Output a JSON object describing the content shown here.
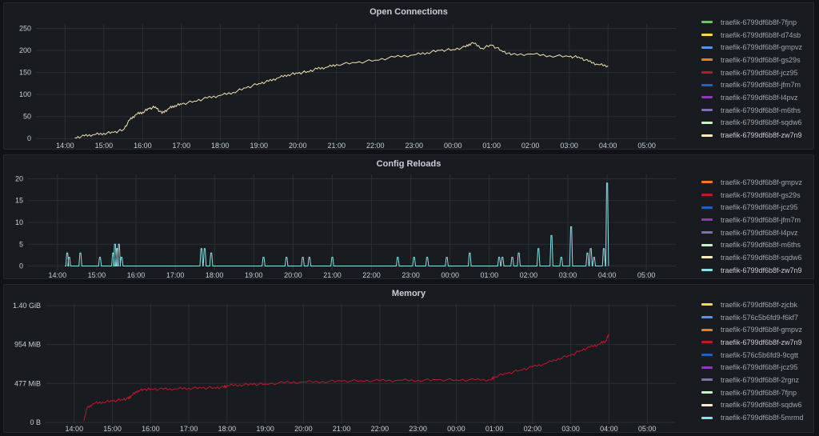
{
  "chart_data": [
    {
      "type": "line",
      "title": "Open Connections",
      "xlabel": "",
      "ylabel": "",
      "x_ticks": [
        "14:00",
        "15:00",
        "16:00",
        "17:00",
        "18:00",
        "19:00",
        "20:00",
        "21:00",
        "22:00",
        "23:00",
        "00:00",
        "01:00",
        "02:00",
        "03:00",
        "04:00",
        "05:00"
      ],
      "xlim": [
        "13:15",
        "05:45"
      ],
      "y_ticks": [
        "0",
        "50",
        "100",
        "150",
        "200",
        "250"
      ],
      "y_tick_values": [
        0,
        50,
        100,
        150,
        200,
        250
      ],
      "ylim": [
        -5,
        260
      ],
      "grid": true,
      "legend_placement": "right",
      "legend_scrolled": true,
      "legend": [
        {
          "name": "traefik-6799df6b8f-7fjnp",
          "color": "#73bf69",
          "partial": true
        },
        {
          "name": "traefik-6799df6b8f-d74sb",
          "color": "#fade2a"
        },
        {
          "name": "traefik-6799df6b8f-gmpvz",
          "color": "#5794f2"
        },
        {
          "name": "traefik-6799df6b8f-gs29s",
          "color": "#ff780a"
        },
        {
          "name": "traefik-6799df6b8f-jcz95",
          "color": "#c4162a"
        },
        {
          "name": "traefik-6799df6b8f-jfm7m",
          "color": "#1f60c4"
        },
        {
          "name": "traefik-6799df6b8f-l4pvz",
          "color": "#8f3bb8"
        },
        {
          "name": "traefik-6799df6b8f-m6ths",
          "color": "#806eb7"
        },
        {
          "name": "traefik-6799df6b8f-sqdw6",
          "color": "#c8f2c2"
        },
        {
          "name": "traefik-6799df6b8f-zw7n9",
          "color": "#ffeebc",
          "active": true
        }
      ],
      "series": [
        {
          "name": "traefik-6799df6b8f-zw7n9",
          "color": "#f2e3b3",
          "x": [
            "14:15",
            "14:30",
            "14:45",
            "15:00",
            "15:15",
            "15:30",
            "15:40",
            "15:50",
            "16:00",
            "16:10",
            "16:20",
            "16:30",
            "16:40",
            "16:50",
            "17:00",
            "17:20",
            "17:40",
            "18:00",
            "18:20",
            "18:40",
            "19:00",
            "19:15",
            "19:30",
            "19:45",
            "20:00",
            "20:15",
            "20:30",
            "20:45",
            "21:00",
            "21:30",
            "22:00",
            "22:30",
            "23:00",
            "23:20",
            "23:40",
            "00:00",
            "00:20",
            "00:30",
            "00:45",
            "01:00",
            "01:15",
            "01:30",
            "02:00",
            "02:30",
            "03:00",
            "03:15",
            "03:30",
            "03:45",
            "04:00"
          ],
          "y": [
            2,
            6,
            9,
            12,
            14,
            20,
            42,
            55,
            60,
            68,
            72,
            57,
            68,
            75,
            78,
            85,
            92,
            98,
            105,
            115,
            125,
            130,
            138,
            145,
            148,
            152,
            158,
            162,
            168,
            172,
            178,
            185,
            190,
            195,
            200,
            202,
            208,
            218,
            205,
            212,
            200,
            190,
            192,
            188,
            186,
            185,
            175,
            168,
            165
          ]
        }
      ]
    },
    {
      "type": "line",
      "title": "Config Reloads",
      "xlabel": "",
      "ylabel": "",
      "x_ticks": [
        "14:00",
        "15:00",
        "16:00",
        "17:00",
        "18:00",
        "19:00",
        "20:00",
        "21:00",
        "22:00",
        "23:00",
        "00:00",
        "01:00",
        "02:00",
        "03:00",
        "04:00",
        "05:00"
      ],
      "xlim": [
        "13:15",
        "05:45"
      ],
      "y_ticks": [
        "0",
        "5",
        "10",
        "15",
        "20"
      ],
      "y_tick_values": [
        0,
        5,
        10,
        15,
        20
      ],
      "ylim": [
        -1,
        21
      ],
      "grid": true,
      "legend_placement": "right",
      "legend": [
        {
          "name": "traefik-6799df6b8f-gmpvz",
          "color": "#ff780a"
        },
        {
          "name": "traefik-6799df6b8f-gs29s",
          "color": "#c4162a"
        },
        {
          "name": "traefik-6799df6b8f-jcz95",
          "color": "#1f60c4"
        },
        {
          "name": "traefik-6799df6b8f-jfm7m",
          "color": "#8f3bb8"
        },
        {
          "name": "traefik-6799df6b8f-l4pvz",
          "color": "#806eb7"
        },
        {
          "name": "traefik-6799df6b8f-m6ths",
          "color": "#c8f2c2"
        },
        {
          "name": "traefik-6799df6b8f-sqdw6",
          "color": "#ffeebc"
        },
        {
          "name": "traefik-6799df6b8f-zw7n9",
          "color": "#8ae1e8",
          "active": true
        }
      ],
      "series": [
        {
          "name": "traefik-6799df6b8f-zw7n9",
          "color": "#8ae1e8",
          "baseline": 0,
          "spikes": [
            {
              "t": "14:15",
              "y": 3
            },
            {
              "t": "14:18",
              "y": 2
            },
            {
              "t": "14:35",
              "y": 3
            },
            {
              "t": "15:05",
              "y": 2
            },
            {
              "t": "15:25",
              "y": 3
            },
            {
              "t": "15:28",
              "y": 5
            },
            {
              "t": "15:31",
              "y": 4
            },
            {
              "t": "15:34",
              "y": 5
            },
            {
              "t": "15:38",
              "y": 2
            },
            {
              "t": "17:40",
              "y": 4
            },
            {
              "t": "17:45",
              "y": 4
            },
            {
              "t": "17:55",
              "y": 3
            },
            {
              "t": "19:15",
              "y": 2
            },
            {
              "t": "19:50",
              "y": 2
            },
            {
              "t": "20:15",
              "y": 2
            },
            {
              "t": "20:25",
              "y": 2
            },
            {
              "t": "21:00",
              "y": 2
            },
            {
              "t": "22:40",
              "y": 2
            },
            {
              "t": "23:05",
              "y": 2
            },
            {
              "t": "23:25",
              "y": 2
            },
            {
              "t": "23:55",
              "y": 2
            },
            {
              "t": "00:30",
              "y": 3
            },
            {
              "t": "01:15",
              "y": 2
            },
            {
              "t": "01:20",
              "y": 2
            },
            {
              "t": "01:35",
              "y": 2
            },
            {
              "t": "01:45",
              "y": 3
            },
            {
              "t": "02:15",
              "y": 4
            },
            {
              "t": "02:35",
              "y": 7
            },
            {
              "t": "02:50",
              "y": 2
            },
            {
              "t": "03:05",
              "y": 9
            },
            {
              "t": "03:30",
              "y": 3
            },
            {
              "t": "03:35",
              "y": 4
            },
            {
              "t": "03:40",
              "y": 2
            },
            {
              "t": "03:55",
              "y": 4
            },
            {
              "t": "04:00",
              "y": 19
            }
          ]
        }
      ]
    },
    {
      "type": "line",
      "title": "Memory",
      "xlabel": "",
      "ylabel": "",
      "x_ticks": [
        "14:00",
        "15:00",
        "16:00",
        "17:00",
        "18:00",
        "19:00",
        "20:00",
        "21:00",
        "22:00",
        "23:00",
        "00:00",
        "01:00",
        "02:00",
        "03:00",
        "04:00",
        "05:00"
      ],
      "xlim": [
        "13:15",
        "05:45"
      ],
      "y_ticks": [
        "0 B",
        "477 MiB",
        "954 MiB",
        "1.40 GiB"
      ],
      "y_tick_values": [
        0,
        477,
        954,
        1431
      ],
      "ylim": [
        -20,
        1450
      ],
      "grid": true,
      "legend_placement": "right",
      "legend_scrolled": true,
      "legend": [
        {
          "name": "traefik-6799df6b8f-zjcbk",
          "color": "#fade2a",
          "partial": true
        },
        {
          "name": "traefik-576c5b6fd9-f6kf7",
          "color": "#5794f2"
        },
        {
          "name": "traefik-6799df6b8f-gmpvz",
          "color": "#ff780a"
        },
        {
          "name": "traefik-6799df6b8f-zw7n9",
          "color": "#c4162a",
          "active": true
        },
        {
          "name": "traefik-576c5b6fd9-9cgtt",
          "color": "#1f60c4"
        },
        {
          "name": "traefik-6799df6b8f-jcz95",
          "color": "#8f3bb8"
        },
        {
          "name": "traefik-6799df6b8f-2rgnz",
          "color": "#806eb7"
        },
        {
          "name": "traefik-6799df6b8f-7fjnp",
          "color": "#c8f2c2"
        },
        {
          "name": "traefik-6799df6b8f-sqdw6",
          "color": "#ffeebc"
        },
        {
          "name": "traefik-6799df6b8f-5mrmd",
          "color": "#8ae1e8"
        }
      ],
      "series": [
        {
          "name": "traefik-6799df6b8f-zw7n9",
          "color": "#c4162a",
          "x": [
            "14:15",
            "14:20",
            "14:30",
            "14:45",
            "15:00",
            "15:15",
            "15:25",
            "15:30",
            "15:40",
            "15:50",
            "16:00",
            "16:20",
            "16:40",
            "17:00",
            "17:20",
            "17:40",
            "17:55",
            "18:00",
            "18:20",
            "18:40",
            "19:00",
            "19:30",
            "20:00",
            "20:30",
            "21:00",
            "21:30",
            "22:00",
            "22:30",
            "23:00",
            "23:30",
            "00:00",
            "00:30",
            "00:55",
            "01:00",
            "01:20",
            "01:40",
            "02:00",
            "02:20",
            "02:40",
            "03:00",
            "03:15",
            "03:30",
            "03:45",
            "03:55",
            "04:00"
          ],
          "y": [
            20,
            170,
            230,
            250,
            260,
            280,
            290,
            330,
            390,
            400,
            410,
            405,
            410,
            420,
            420,
            425,
            430,
            450,
            460,
            465,
            470,
            485,
            495,
            500,
            505,
            510,
            510,
            515,
            515,
            520,
            520,
            520,
            520,
            560,
            600,
            640,
            680,
            720,
            780,
            820,
            880,
            920,
            960,
            1000,
            1080
          ]
        }
      ]
    }
  ]
}
